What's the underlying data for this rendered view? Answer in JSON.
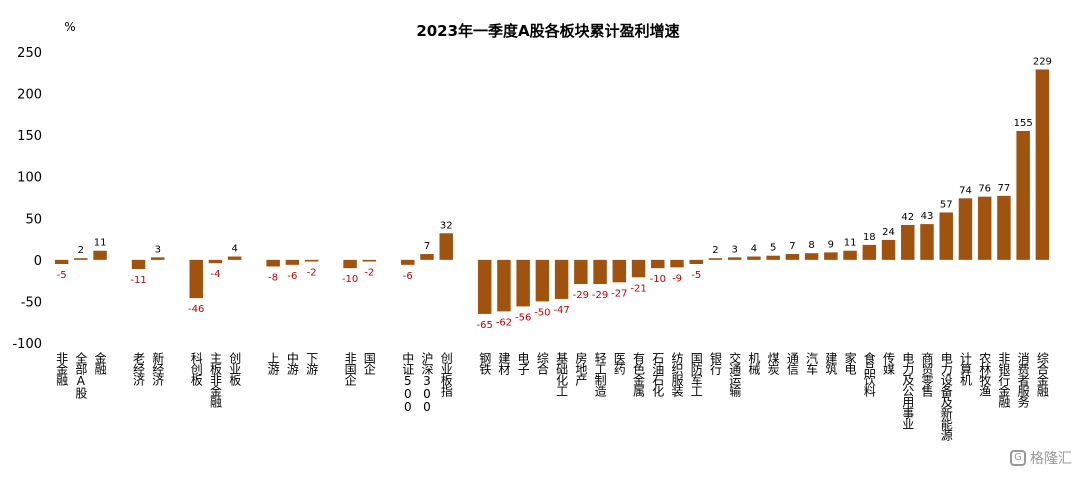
{
  "watermark": "格隆汇",
  "chart_data": {
    "type": "bar",
    "title": "2023年一季度A股各板块累计盈利增速",
    "unit": "%",
    "ylim": [
      -100,
      250
    ],
    "yticks": [
      -100,
      -50,
      0,
      50,
      100,
      150,
      200,
      250
    ],
    "grid": false,
    "bar_color": "#a0520f",
    "negative_label_color": "#c00000",
    "groups": [
      {
        "categories": [
          "非金融",
          "全部A股",
          "金融"
        ],
        "values": [
          -5,
          2,
          11
        ]
      },
      {
        "categories": [
          "老经济",
          "新经济"
        ],
        "values": [
          -11,
          3
        ]
      },
      {
        "categories": [
          "科创板",
          "主板非金融",
          "创业板"
        ],
        "values": [
          -46,
          -4,
          4
        ]
      },
      {
        "categories": [
          "上游",
          "中游",
          "下游"
        ],
        "values": [
          -8,
          -6,
          -2
        ]
      },
      {
        "categories": [
          "非国企",
          "国企"
        ],
        "values": [
          -10,
          -2
        ]
      },
      {
        "categories": [
          "中证500",
          "沪深300",
          "创业板指"
        ],
        "values": [
          -6,
          7,
          32
        ]
      },
      {
        "categories": [
          "钢铁",
          "建材",
          "电子",
          "综合",
          "基础化工",
          "房地产",
          "轻工制造",
          "医药",
          "有色金属",
          "石油石化",
          "纺织服装",
          "国防军工",
          "银行",
          "交通运输",
          "机械",
          "煤炭",
          "通信",
          "汽车",
          "建筑",
          "家电",
          "食品饮料",
          "传媒",
          "电力及公用事业",
          "商贸零售",
          "电力设备及新能源",
          "计算机",
          "农林牧渔",
          "非银行金融",
          "消费者服务",
          "综合金融"
        ],
        "values": [
          -65,
          -62,
          -56,
          -50,
          -47,
          -29,
          -29,
          -27,
          -21,
          -10,
          -9,
          -5,
          2,
          3,
          4,
          5,
          7,
          8,
          9,
          11,
          18,
          24,
          42,
          43,
          57,
          74,
          76,
          77,
          155,
          229
        ]
      }
    ]
  }
}
